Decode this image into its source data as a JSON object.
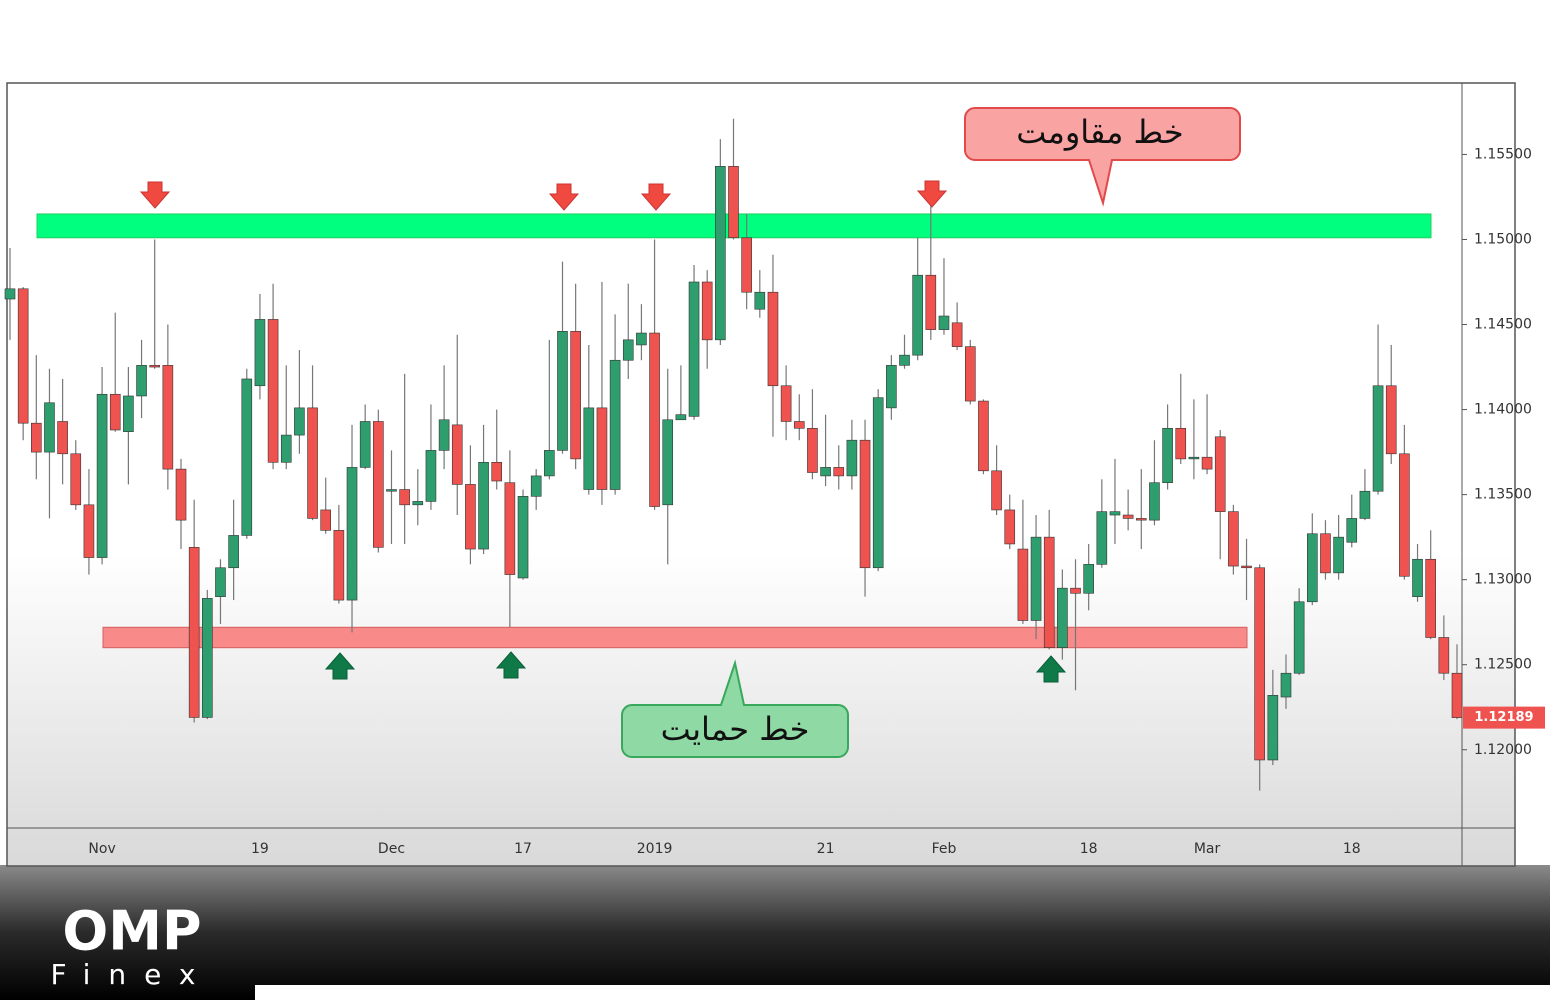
{
  "chart_data": {
    "type": "candlestick",
    "categories": [
      null,
      null,
      null,
      null,
      null,
      null,
      null,
      "Nov",
      null,
      null,
      null,
      null,
      null,
      null,
      null,
      null,
      null,
      null,
      null,
      "19",
      null,
      null,
      null,
      null,
      null,
      null,
      null,
      null,
      null,
      "Dec",
      null,
      null,
      null,
      null,
      null,
      null,
      null,
      null,
      null,
      "17",
      null,
      null,
      null,
      null,
      null,
      null,
      null,
      null,
      null,
      "2019",
      null,
      null,
      null,
      null,
      null,
      null,
      null,
      null,
      null,
      null,
      null,
      null,
      "21",
      null,
      null,
      null,
      null,
      null,
      null,
      null,
      null,
      "Feb",
      null,
      null,
      null,
      null,
      null,
      null,
      null,
      null,
      null,
      null,
      "18",
      null,
      null,
      null,
      null,
      null,
      null,
      null,
      null,
      "Mar",
      null,
      null,
      null,
      null,
      null,
      null,
      null,
      null,
      null,
      null,
      "18",
      null,
      null,
      null,
      null,
      null,
      null,
      null,
      null
    ],
    "open": [
      1.1465,
      1.1471,
      1.1392,
      1.1375,
      1.1393,
      1.1374,
      1.1344,
      1.1313,
      1.1409,
      1.1387,
      1.1408,
      1.1426,
      1.1426,
      1.1365,
      1.1319,
      1.1219,
      1.129,
      1.1307,
      1.1326,
      1.1414,
      1.1453,
      1.1369,
      1.1385,
      1.1401,
      1.1341,
      1.1329,
      1.1288,
      1.1366,
      1.1393,
      1.1352,
      1.1353,
      1.1344,
      1.1346,
      1.1376,
      1.1391,
      1.1356,
      1.1318,
      1.1369,
      1.1357,
      1.1301,
      1.1349,
      1.1361,
      1.1376,
      1.1446,
      1.1353,
      1.1401,
      1.1353,
      1.1429,
      1.1438,
      1.1445,
      1.1344,
      1.1394,
      1.1396,
      1.1475,
      1.1441,
      1.1543,
      1.1501,
      1.1459,
      1.1469,
      1.1414,
      1.1393,
      1.1389,
      1.1361,
      1.1366,
      1.1361,
      1.1382,
      1.1307,
      1.1401,
      1.1426,
      1.1432,
      1.1479,
      1.1447,
      1.1451,
      1.1437,
      1.1405,
      1.1364,
      1.1341,
      1.1318,
      1.1276,
      1.1325,
      1.126,
      1.1295,
      1.1292,
      1.1309,
      1.1338,
      1.1338,
      1.1336,
      1.1335,
      1.1357,
      1.1389,
      1.1371,
      1.1372,
      1.1384,
      1.134,
      1.1308,
      1.1307,
      1.1194,
      1.1231,
      1.1245,
      1.1287,
      1.1327,
      1.1304,
      1.1322,
      1.1336,
      1.1352,
      1.1414,
      1.1374,
      1.129,
      1.1312,
      1.1266,
      1.1245
    ],
    "high": [
      1.1495,
      1.1472,
      1.1432,
      1.1424,
      1.1418,
      1.1382,
      1.1365,
      1.1425,
      1.1457,
      1.1425,
      1.1441,
      1.15,
      1.145,
      1.1371,
      1.1347,
      1.1294,
      1.1312,
      1.1347,
      1.1424,
      1.1468,
      1.1474,
      1.1426,
      1.1435,
      1.1426,
      1.136,
      1.1344,
      1.1391,
      1.1403,
      1.14,
      1.1376,
      1.1421,
      1.1365,
      1.1403,
      1.1426,
      1.1444,
      1.1379,
      1.1391,
      1.14,
      1.1376,
      1.1353,
      1.1365,
      1.1441,
      1.1487,
      1.1474,
      1.1438,
      1.1475,
      1.1456,
      1.1474,
      1.1462,
      1.15,
      1.1424,
      1.1426,
      1.1485,
      1.1482,
      1.1559,
      1.1571,
      1.1515,
      1.1482,
      1.1491,
      1.1426,
      1.1409,
      1.1412,
      1.1397,
      1.1379,
      1.1394,
      1.1394,
      1.1412,
      1.1432,
      1.1444,
      1.1501,
      1.1529,
      1.1489,
      1.1463,
      1.1441,
      1.1406,
      1.1379,
      1.135,
      1.1347,
      1.1338,
      1.1341,
      1.1306,
      1.1312,
      1.1321,
      1.1359,
      1.1371,
      1.1353,
      1.1365,
      1.1382,
      1.1403,
      1.1421,
      1.1406,
      1.1409,
      1.1388,
      1.1344,
      1.1324,
      1.1309,
      1.1247,
      1.1256,
      1.1295,
      1.1339,
      1.1335,
      1.1338,
      1.135,
      1.1365,
      1.145,
      1.1438,
      1.1391,
      1.1321,
      1.1329,
      1.1279,
      1.1262
    ],
    "low": [
      1.1441,
      1.1382,
      1.1359,
      1.1336,
      1.1356,
      1.1341,
      1.1303,
      1.1309,
      1.1387,
      1.1356,
      1.1395,
      1.1424,
      1.1353,
      1.1318,
      1.1216,
      1.1218,
      1.1274,
      1.1288,
      1.1324,
      1.1406,
      1.1365,
      1.1365,
      1.1374,
      1.1335,
      1.1327,
      1.1286,
      1.1269,
      1.1365,
      1.1316,
      1.1321,
      1.1321,
      1.1332,
      1.1341,
      1.1365,
      1.1338,
      1.1309,
      1.1315,
      1.1353,
      1.1272,
      1.13,
      1.1341,
      1.1359,
      1.1374,
      1.1365,
      1.135,
      1.1344,
      1.135,
      1.1418,
      1.1429,
      1.1341,
      1.1309,
      1.1394,
      1.1394,
      1.1424,
      1.1438,
      1.15,
      1.1459,
      1.1454,
      1.1384,
      1.1382,
      1.1382,
      1.1359,
      1.1355,
      1.1353,
      1.1353,
      1.129,
      1.1305,
      1.1394,
      1.1424,
      1.1429,
      1.1441,
      1.1444,
      1.1435,
      1.1403,
      1.1362,
      1.1338,
      1.1318,
      1.1274,
      1.1265,
      1.1259,
      1.1253,
      1.1235,
      1.1282,
      1.1307,
      1.1321,
      1.1329,
      1.1318,
      1.1332,
      1.1353,
      1.1368,
      1.1359,
      1.1362,
      1.1312,
      1.1303,
      1.1288,
      1.1176,
      1.1191,
      1.1224,
      1.1244,
      1.1285,
      1.13,
      1.13,
      1.1319,
      1.1335,
      1.135,
      1.1368,
      1.13,
      1.1287,
      1.1265,
      1.1241,
      1.1218
    ],
    "close": [
      1.1471,
      1.1392,
      1.1375,
      1.1404,
      1.1374,
      1.1344,
      1.1313,
      1.1409,
      1.1388,
      1.1408,
      1.1426,
      1.1425,
      1.1365,
      1.1335,
      1.1219,
      1.1289,
      1.1307,
      1.1326,
      1.1418,
      1.1453,
      1.1369,
      1.1385,
      1.1401,
      1.1336,
      1.1329,
      1.1288,
      1.1366,
      1.1393,
      1.1319,
      1.1353,
      1.1344,
      1.1346,
      1.1376,
      1.1394,
      1.1356,
      1.1318,
      1.1369,
      1.1358,
      1.1303,
      1.1349,
      1.1361,
      1.1376,
      1.1446,
      1.1371,
      1.1401,
      1.1353,
      1.1429,
      1.1441,
      1.1445,
      1.1343,
      1.1394,
      1.1397,
      1.1475,
      1.1441,
      1.1543,
      1.1501,
      1.1469,
      1.1469,
      1.1414,
      1.1393,
      1.1389,
      1.1363,
      1.1366,
      1.1361,
      1.1382,
      1.1307,
      1.1407,
      1.1426,
      1.1432,
      1.1479,
      1.1447,
      1.1455,
      1.1437,
      1.1405,
      1.1364,
      1.1341,
      1.1321,
      1.1276,
      1.1325,
      1.126,
      1.1295,
      1.1292,
      1.1309,
      1.134,
      1.134,
      1.1336,
      1.1335,
      1.1357,
      1.1389,
      1.1371,
      1.1372,
      1.1365,
      1.134,
      1.1308,
      1.1307,
      1.1194,
      1.1232,
      1.1245,
      1.1287,
      1.1327,
      1.1304,
      1.1325,
      1.1336,
      1.1352,
      1.1414,
      1.1374,
      1.1302,
      1.1312,
      1.1266,
      1.1245,
      1.12189
    ],
    "up_color": "#2f9e6f",
    "down_color": "#ef5350",
    "ylim": [
      1.1154,
      1.1592
    ],
    "yticks": [
      {
        "value": 1.12,
        "label": "1.12000"
      },
      {
        "value": 1.125,
        "label": "1.12500"
      },
      {
        "value": 1.13,
        "label": "1.13000"
      },
      {
        "value": 1.135,
        "label": "1.13500"
      },
      {
        "value": 1.14,
        "label": "1.14000"
      },
      {
        "value": 1.145,
        "label": "1.14500"
      },
      {
        "value": 1.15,
        "label": "1.15000"
      },
      {
        "value": 1.155,
        "label": "1.15500"
      }
    ],
    "zones": [
      {
        "label": "خط مقاومت",
        "low": 1.1501,
        "high": 1.1515,
        "color": "#00ff7f"
      },
      {
        "label": "خط حمایت",
        "low": 1.126,
        "high": 1.1272,
        "color": "#f88a8a"
      }
    ]
  },
  "brand": {
    "name": "OMP",
    "sub": "Finex"
  }
}
